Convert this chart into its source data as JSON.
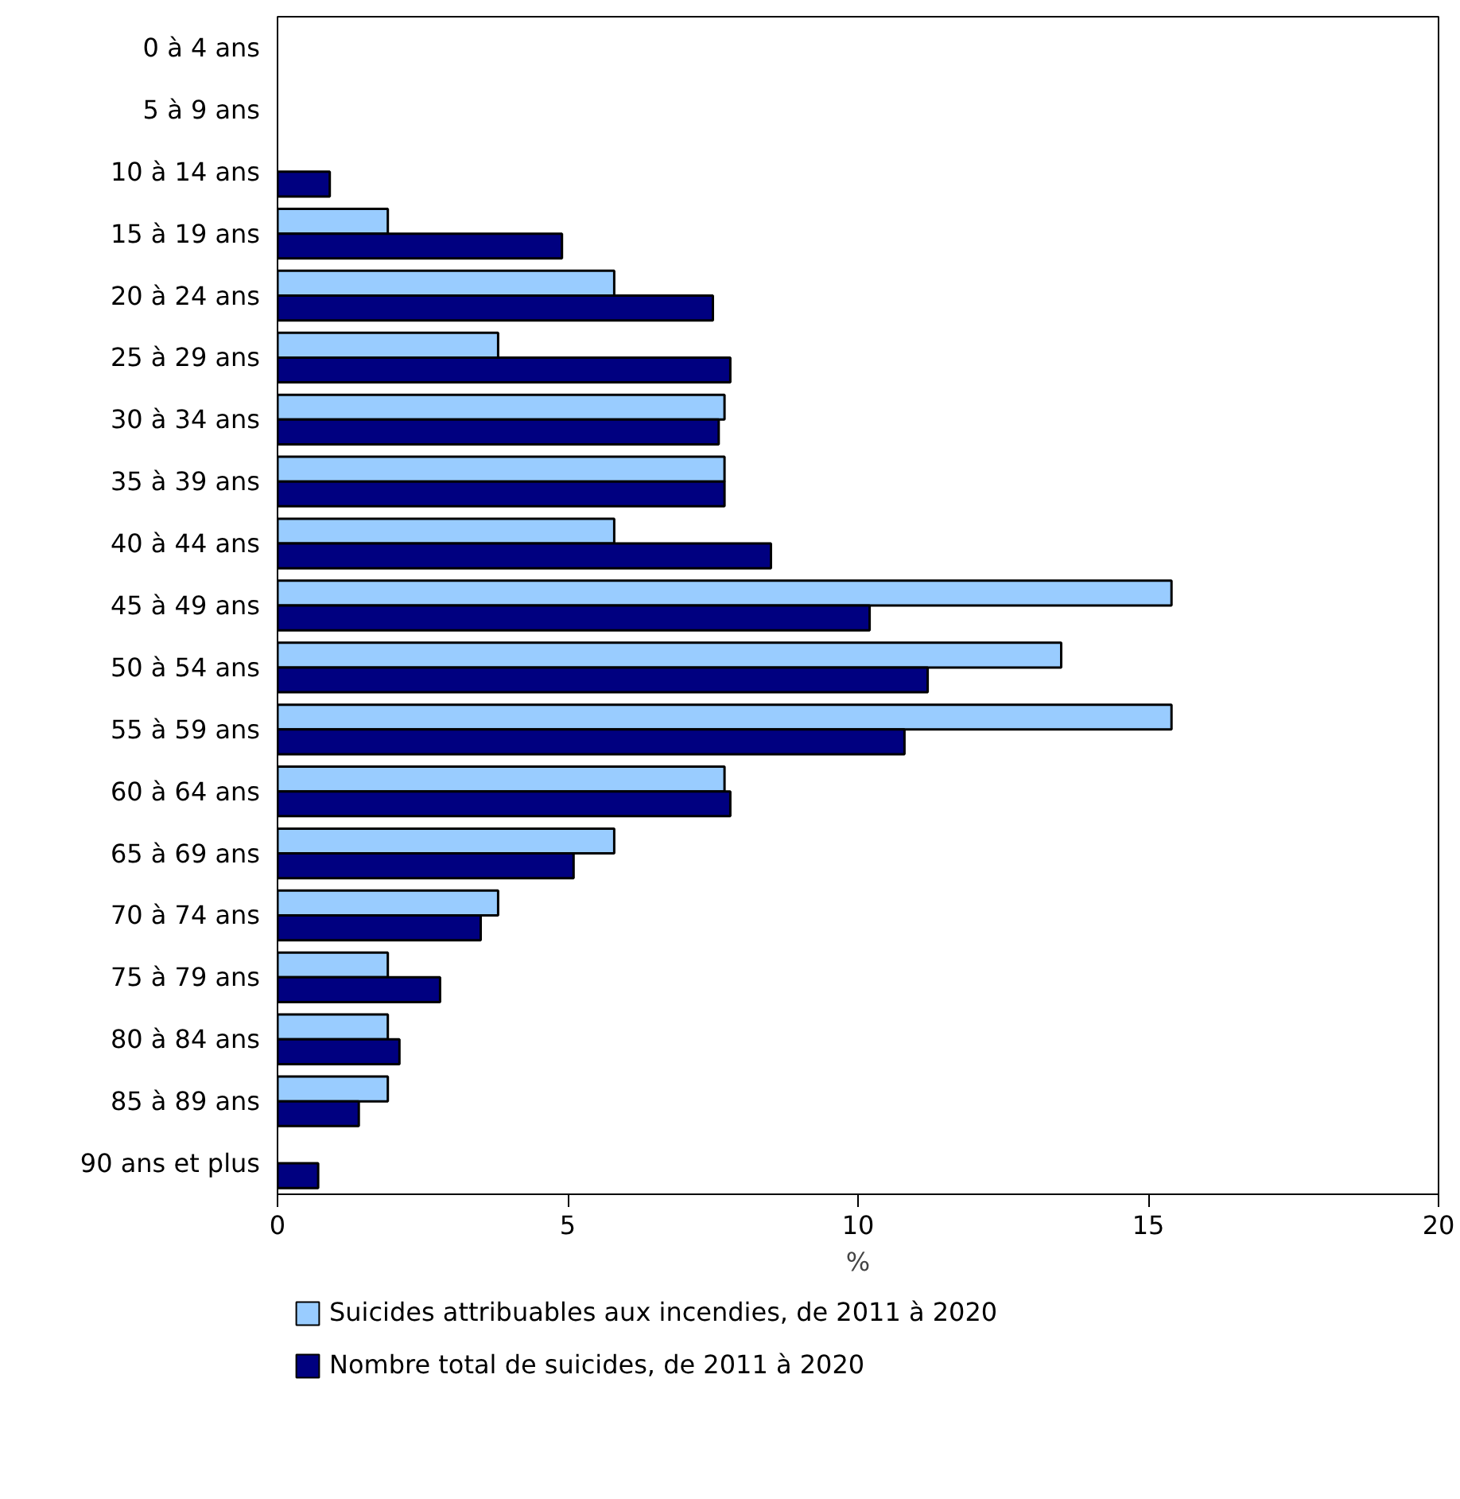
{
  "chart_data": {
    "type": "bar",
    "orientation": "horizontal",
    "xlabel": "%",
    "categories": [
      "0 à 4 ans",
      "5 à 9 ans",
      "10 à 14 ans",
      "15 à 19 ans",
      "20 à 24 ans",
      "25 à 29 ans",
      "30 à 34 ans",
      "35 à 39 ans",
      "40 à 44 ans",
      "45 à 49 ans",
      "50 à 54 ans",
      "55 à 59 ans",
      "60 à 64 ans",
      "65 à 69 ans",
      "70 à 74 ans",
      "75 à 79 ans",
      "80 à 84 ans",
      "85 à 89 ans",
      "90 ans et plus"
    ],
    "series": [
      {
        "name": "Suicides attribuables aux incendies, de 2011 à 2020",
        "color": "#99ccff",
        "values": [
          0,
          0,
          0,
          1.9,
          5.8,
          3.8,
          7.7,
          7.7,
          5.8,
          15.4,
          13.5,
          15.4,
          7.7,
          5.8,
          3.8,
          1.9,
          1.9,
          1.9,
          0
        ]
      },
      {
        "name": "Nombre total de suicides, de 2011 à 2020",
        "color": "#000080",
        "values": [
          0,
          0,
          0.9,
          4.9,
          7.5,
          7.8,
          7.6,
          7.7,
          8.5,
          10.2,
          11.2,
          10.8,
          7.8,
          5.1,
          3.5,
          2.8,
          2.1,
          1.4,
          0.7
        ]
      }
    ],
    "xlim": [
      0,
      20
    ],
    "xticks": [
      0,
      5,
      10,
      15,
      20
    ],
    "grid": false,
    "legend": "bottom"
  }
}
